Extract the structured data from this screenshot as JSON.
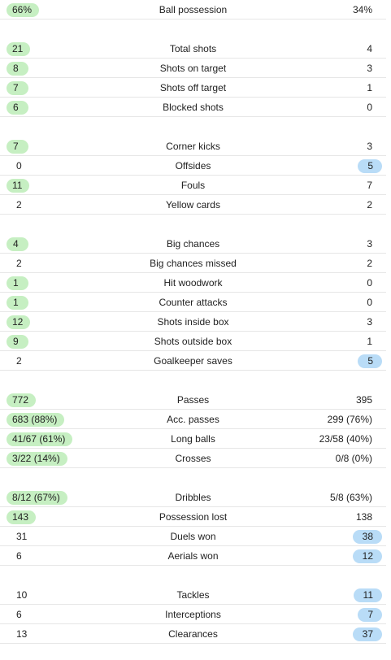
{
  "colors": {
    "home_highlight": "#c6efc2",
    "away_highlight": "#b9dcf7",
    "divider": "#e6e6e6",
    "text": "#222222"
  },
  "groups": [
    {
      "rows": [
        {
          "label": "Ball possession",
          "home": "66%",
          "away": "34%",
          "highlight": "home"
        }
      ]
    },
    {
      "rows": [
        {
          "label": "Total shots",
          "home": "21",
          "away": "4",
          "highlight": "home"
        },
        {
          "label": "Shots on target",
          "home": "8",
          "away": "3",
          "highlight": "home"
        },
        {
          "label": "Shots off target",
          "home": "7",
          "away": "1",
          "highlight": "home"
        },
        {
          "label": "Blocked shots",
          "home": "6",
          "away": "0",
          "highlight": "home"
        }
      ]
    },
    {
      "rows": [
        {
          "label": "Corner kicks",
          "home": "7",
          "away": "3",
          "highlight": "home"
        },
        {
          "label": "Offsides",
          "home": "0",
          "away": "5",
          "highlight": "away"
        },
        {
          "label": "Fouls",
          "home": "11",
          "away": "7",
          "highlight": "home"
        },
        {
          "label": "Yellow cards",
          "home": "2",
          "away": "2",
          "highlight": "none"
        }
      ]
    },
    {
      "rows": [
        {
          "label": "Big chances",
          "home": "4",
          "away": "3",
          "highlight": "home"
        },
        {
          "label": "Big chances missed",
          "home": "2",
          "away": "2",
          "highlight": "none"
        },
        {
          "label": "Hit woodwork",
          "home": "1",
          "away": "0",
          "highlight": "home"
        },
        {
          "label": "Counter attacks",
          "home": "1",
          "away": "0",
          "highlight": "home"
        },
        {
          "label": "Shots inside box",
          "home": "12",
          "away": "3",
          "highlight": "home"
        },
        {
          "label": "Shots outside box",
          "home": "9",
          "away": "1",
          "highlight": "home"
        },
        {
          "label": "Goalkeeper saves",
          "home": "2",
          "away": "5",
          "highlight": "away"
        }
      ]
    },
    {
      "rows": [
        {
          "label": "Passes",
          "home": "772",
          "away": "395",
          "highlight": "home"
        },
        {
          "label": "Acc. passes",
          "home": "683 (88%)",
          "away": "299 (76%)",
          "highlight": "home"
        },
        {
          "label": "Long balls",
          "home": "41/67 (61%)",
          "away": "23/58 (40%)",
          "highlight": "home"
        },
        {
          "label": "Crosses",
          "home": "3/22 (14%)",
          "away": "0/8 (0%)",
          "highlight": "home"
        }
      ]
    },
    {
      "rows": [
        {
          "label": "Dribbles",
          "home": "8/12 (67%)",
          "away": "5/8 (63%)",
          "highlight": "home"
        },
        {
          "label": "Possession lost",
          "home": "143",
          "away": "138",
          "highlight": "home"
        },
        {
          "label": "Duels won",
          "home": "31",
          "away": "38",
          "highlight": "away"
        },
        {
          "label": "Aerials won",
          "home": "6",
          "away": "12",
          "highlight": "away"
        }
      ]
    },
    {
      "rows": [
        {
          "label": "Tackles",
          "home": "10",
          "away": "11",
          "highlight": "away"
        },
        {
          "label": "Interceptions",
          "home": "6",
          "away": "7",
          "highlight": "away"
        },
        {
          "label": "Clearances",
          "home": "13",
          "away": "37",
          "highlight": "away"
        }
      ]
    }
  ]
}
